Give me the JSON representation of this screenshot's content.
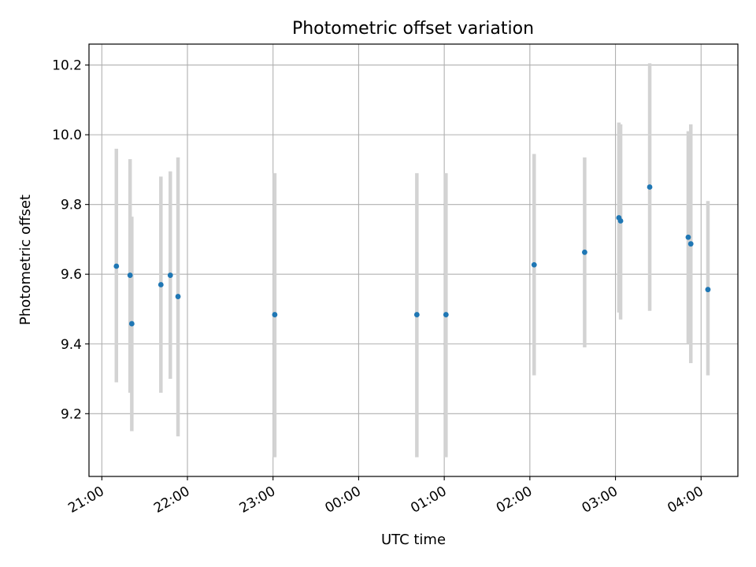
{
  "chart_data": {
    "type": "scatter",
    "title": "Photometric offset variation",
    "xlabel": "UTC time",
    "ylabel": "Photometric offset",
    "x_unit": "hours",
    "xlim": [
      20.85,
      28.43
    ],
    "ylim": [
      9.02,
      10.26
    ],
    "grid": true,
    "x_ticks": [
      {
        "value": 21,
        "label": "21:00"
      },
      {
        "value": 22,
        "label": "22:00"
      },
      {
        "value": 23,
        "label": "23:00"
      },
      {
        "value": 24,
        "label": "00:00"
      },
      {
        "value": 25,
        "label": "01:00"
      },
      {
        "value": 26,
        "label": "02:00"
      },
      {
        "value": 27,
        "label": "03:00"
      },
      {
        "value": 28,
        "label": "04:00"
      }
    ],
    "y_ticks": [
      {
        "value": 9.2,
        "label": "9.2"
      },
      {
        "value": 9.4,
        "label": "9.4"
      },
      {
        "value": 9.6,
        "label": "9.6"
      },
      {
        "value": 9.8,
        "label": "9.8"
      },
      {
        "value": 10.0,
        "label": "10.0"
      },
      {
        "value": 10.2,
        "label": "10.2"
      }
    ],
    "point_color": "#1f77b4",
    "errorbar_color": "#d3d3d3",
    "points": [
      {
        "x": 21.17,
        "y": 9.623,
        "low": 9.29,
        "high": 9.96
      },
      {
        "x": 21.33,
        "y": 9.597,
        "low": 9.26,
        "high": 9.93
      },
      {
        "x": 21.35,
        "y": 9.458,
        "low": 9.15,
        "high": 9.765
      },
      {
        "x": 21.69,
        "y": 9.57,
        "low": 9.26,
        "high": 9.88
      },
      {
        "x": 21.8,
        "y": 9.597,
        "low": 9.3,
        "high": 9.895
      },
      {
        "x": 21.89,
        "y": 9.536,
        "low": 9.135,
        "high": 9.935
      },
      {
        "x": 23.02,
        "y": 9.484,
        "low": 9.075,
        "high": 9.89
      },
      {
        "x": 24.68,
        "y": 9.484,
        "low": 9.075,
        "high": 9.89
      },
      {
        "x": 25.02,
        "y": 9.484,
        "low": 9.075,
        "high": 9.89
      },
      {
        "x": 26.05,
        "y": 9.627,
        "low": 9.31,
        "high": 9.945
      },
      {
        "x": 26.64,
        "y": 9.663,
        "low": 9.39,
        "high": 9.935
      },
      {
        "x": 27.04,
        "y": 9.762,
        "low": 9.49,
        "high": 10.035
      },
      {
        "x": 27.06,
        "y": 9.753,
        "low": 9.47,
        "high": 10.03
      },
      {
        "x": 27.4,
        "y": 9.85,
        "low": 9.495,
        "high": 10.205
      },
      {
        "x": 27.85,
        "y": 9.706,
        "low": 9.4,
        "high": 10.01
      },
      {
        "x": 27.88,
        "y": 9.687,
        "low": 9.345,
        "high": 10.03
      },
      {
        "x": 28.08,
        "y": 9.556,
        "low": 9.31,
        "high": 9.81
      }
    ]
  }
}
